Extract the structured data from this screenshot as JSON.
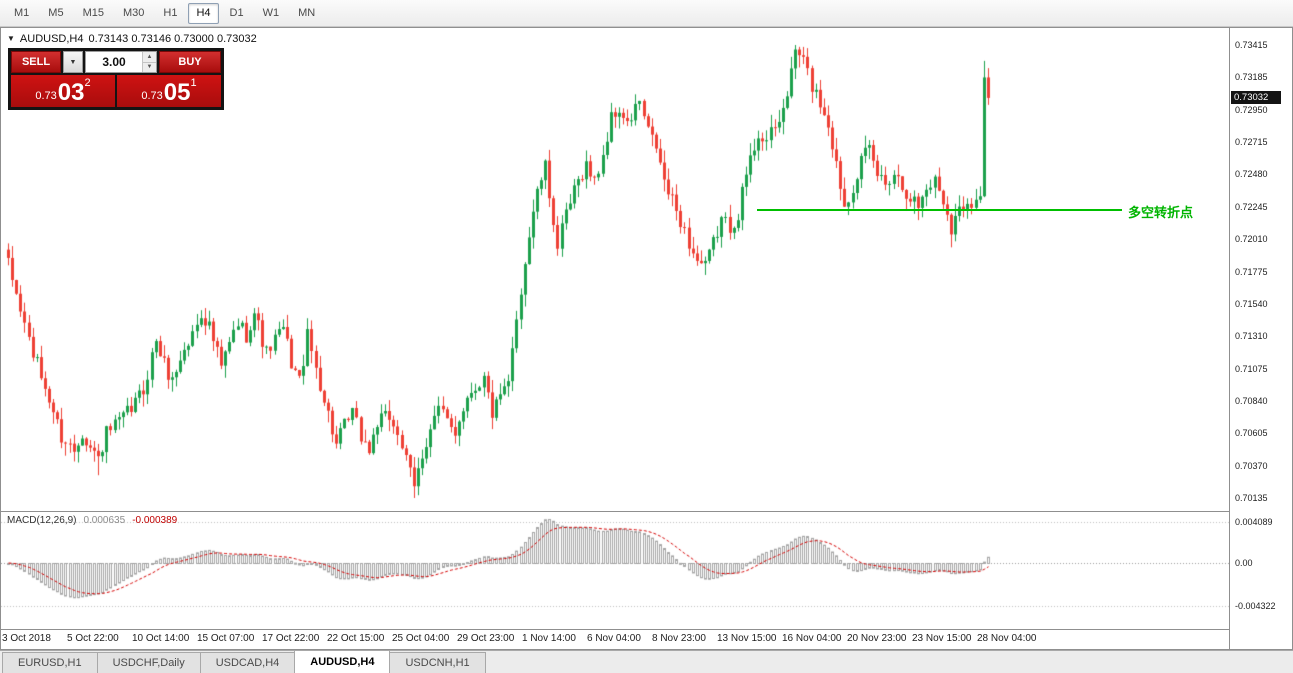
{
  "toolbar": {
    "timeframes": [
      {
        "label": "M1",
        "active": false
      },
      {
        "label": "M5",
        "active": false
      },
      {
        "label": "M15",
        "active": false
      },
      {
        "label": "M30",
        "active": false
      },
      {
        "label": "H1",
        "active": false
      },
      {
        "label": "H4",
        "active": true
      },
      {
        "label": "D1",
        "active": false
      },
      {
        "label": "W1",
        "active": false
      },
      {
        "label": "MN",
        "active": false
      }
    ]
  },
  "chart_header": {
    "symbol": "AUDUSD,H4",
    "quotes": "0.73143 0.73146 0.73000 0.73032"
  },
  "trade_panel": {
    "sell_label": "SELL",
    "buy_label": "BUY",
    "volume": "3.00",
    "dropdown_icon": "▼",
    "spin_up_icon": "▲",
    "spin_down_icon": "▼",
    "sell_price_prefix": "0.73",
    "sell_price_big": "03",
    "sell_price_sup": "2",
    "buy_price_prefix": "0.73",
    "buy_price_big": "05",
    "buy_price_sup": "1"
  },
  "annotation": {
    "label": "多空转折点",
    "color": "#00b400"
  },
  "price_scale": {
    "labels": [
      "0.73415",
      "0.73185",
      "0.72950",
      "0.72715",
      "0.72480",
      "0.72245",
      "0.72010",
      "0.71775",
      "0.71540",
      "0.71310",
      "0.71075",
      "0.70840",
      "0.70605",
      "0.70370",
      "0.70135"
    ],
    "current": "0.73032"
  },
  "time_scale": {
    "labels": [
      "3 Oct 2018",
      "5 Oct 22:00",
      "10 Oct 14:00",
      "15 Oct 07:00",
      "17 Oct 22:00",
      "22 Oct 15:00",
      "25 Oct 04:00",
      "29 Oct 23:00",
      "1 Nov 14:00",
      "6 Nov 04:00",
      "8 Nov 23:00",
      "13 Nov 15:00",
      "16 Nov 04:00",
      "20 Nov 23:00",
      "23 Nov 15:00",
      "28 Nov 04:00"
    ]
  },
  "macd_panel": {
    "title": "MACD(12,26,9)",
    "main_value": "0.000635",
    "signal_value": "-0.000389",
    "scale_labels": [
      "0.004089",
      "0.00",
      "-0.004322"
    ]
  },
  "tabs": [
    {
      "label": "EURUSD,H1",
      "active": false
    },
    {
      "label": "USDCHF,Daily",
      "active": false
    },
    {
      "label": "USDCAD,H4",
      "active": false
    },
    {
      "label": "AUDUSD,H4",
      "active": true
    },
    {
      "label": "USDCNH,H1",
      "active": false
    }
  ],
  "colors": {
    "bull": "#1ca04c",
    "bear": "#ee4035",
    "support_line": "#00bf00",
    "histogram": "#a6a6a6",
    "signal": "#d40000",
    "grid_dotted": "#bdbdbd",
    "zero_line": "#9a9a9a"
  },
  "chart_data": {
    "type": "candlestick",
    "title": "AUDUSD,H4",
    "symbol": "AUDUSD",
    "timeframe": "H4",
    "bars": 240,
    "price_range": [
      0.70135,
      0.73415
    ],
    "anchors": [
      [
        0,
        0.7182
      ],
      [
        3,
        0.715
      ],
      [
        6,
        0.7118
      ],
      [
        10,
        0.7085
      ],
      [
        13,
        0.7058
      ],
      [
        16,
        0.7048
      ],
      [
        18,
        0.7062
      ],
      [
        20,
        0.705
      ],
      [
        22,
        0.7042
      ],
      [
        24,
        0.706
      ],
      [
        27,
        0.7068
      ],
      [
        30,
        0.7078
      ],
      [
        33,
        0.7092
      ],
      [
        36,
        0.7128
      ],
      [
        38,
        0.711
      ],
      [
        40,
        0.7098
      ],
      [
        42,
        0.7115
      ],
      [
        44,
        0.7125
      ],
      [
        47,
        0.7148
      ],
      [
        49,
        0.7138
      ],
      [
        52,
        0.7108
      ],
      [
        54,
        0.7125
      ],
      [
        56,
        0.714
      ],
      [
        58,
        0.7132
      ],
      [
        60,
        0.7148
      ],
      [
        63,
        0.7118
      ],
      [
        65,
        0.7128
      ],
      [
        67,
        0.7136
      ],
      [
        69,
        0.7112
      ],
      [
        71,
        0.7098
      ],
      [
        73,
        0.713
      ],
      [
        75,
        0.7108
      ],
      [
        77,
        0.7085
      ],
      [
        80,
        0.7052
      ],
      [
        82,
        0.7065
      ],
      [
        84,
        0.7075
      ],
      [
        86,
        0.7058
      ],
      [
        88,
        0.7048
      ],
      [
        90,
        0.7068
      ],
      [
        93,
        0.7072
      ],
      [
        95,
        0.7062
      ],
      [
        97,
        0.704
      ],
      [
        99,
        0.7022
      ],
      [
        101,
        0.7045
      ],
      [
        103,
        0.7065
      ],
      [
        105,
        0.7078
      ],
      [
        107,
        0.7068
      ],
      [
        109,
        0.7062
      ],
      [
        111,
        0.708
      ],
      [
        113,
        0.7092
      ],
      [
        116,
        0.71
      ],
      [
        118,
        0.7075
      ],
      [
        120,
        0.7085
      ],
      [
        122,
        0.7095
      ],
      [
        124,
        0.7145
      ],
      [
        126,
        0.7185
      ],
      [
        128,
        0.7222
      ],
      [
        130,
        0.7245
      ],
      [
        131,
        0.7252
      ],
      [
        133,
        0.7215
      ],
      [
        134,
        0.7195
      ],
      [
        136,
        0.7218
      ],
      [
        138,
        0.7235
      ],
      [
        140,
        0.725
      ],
      [
        141,
        0.7255
      ],
      [
        143,
        0.7242
      ],
      [
        145,
        0.7262
      ],
      [
        147,
        0.7288
      ],
      [
        149,
        0.7295
      ],
      [
        151,
        0.7282
      ],
      [
        153,
        0.7296
      ],
      [
        154,
        0.73
      ],
      [
        156,
        0.7278
      ],
      [
        158,
        0.7268
      ],
      [
        160,
        0.7242
      ],
      [
        162,
        0.7228
      ],
      [
        164,
        0.7215
      ],
      [
        166,
        0.7198
      ],
      [
        168,
        0.7185
      ],
      [
        170,
        0.718
      ],
      [
        172,
        0.7198
      ],
      [
        174,
        0.7215
      ],
      [
        176,
        0.721
      ],
      [
        178,
        0.722
      ],
      [
        180,
        0.7248
      ],
      [
        182,
        0.7268
      ],
      [
        183,
        0.7278
      ],
      [
        185,
        0.7272
      ],
      [
        187,
        0.728
      ],
      [
        189,
        0.7295
      ],
      [
        191,
        0.732
      ],
      [
        192,
        0.7338
      ],
      [
        194,
        0.733
      ],
      [
        196,
        0.7312
      ],
      [
        198,
        0.73
      ],
      [
        200,
        0.7285
      ],
      [
        202,
        0.7255
      ],
      [
        204,
        0.7226
      ],
      [
        206,
        0.724
      ],
      [
        208,
        0.7258
      ],
      [
        210,
        0.7265
      ],
      [
        212,
        0.7248
      ],
      [
        214,
        0.7242
      ],
      [
        216,
        0.725
      ],
      [
        218,
        0.724
      ],
      [
        220,
        0.7232
      ],
      [
        222,
        0.7225
      ],
      [
        224,
        0.7238
      ],
      [
        226,
        0.7244
      ],
      [
        228,
        0.723
      ],
      [
        230,
        0.721
      ],
      [
        232,
        0.7222
      ],
      [
        234,
        0.723
      ],
      [
        236,
        0.7228
      ],
      [
        237,
        0.7232
      ],
      [
        238,
        0.7318
      ],
      [
        239,
        0.73032
      ]
    ],
    "pins": [
      [
        99,
        0.7022
      ],
      [
        237,
        0.7232
      ],
      [
        238,
        0.7318
      ],
      [
        239,
        0.73032
      ]
    ],
    "wick_events": [
      {
        "i": 22,
        "low": 0.703
      },
      {
        "i": 99,
        "low": 0.70135
      },
      {
        "i": 170,
        "low": 0.7175
      },
      {
        "i": 192,
        "high": 0.73415
      },
      {
        "i": 230,
        "low": 0.7195
      },
      {
        "i": 238,
        "high": 0.733
      }
    ],
    "noise_amplitude": 0.0006,
    "seed": 1234567,
    "support_line": {
      "price": 0.7222,
      "from_index": 183,
      "to_index": 272
    },
    "macd": {
      "params": [
        12,
        26,
        9
      ],
      "scale_max": 0.004089,
      "scale_min": -0.004322,
      "last_main": 0.000635,
      "last_signal": -0.000389
    }
  }
}
